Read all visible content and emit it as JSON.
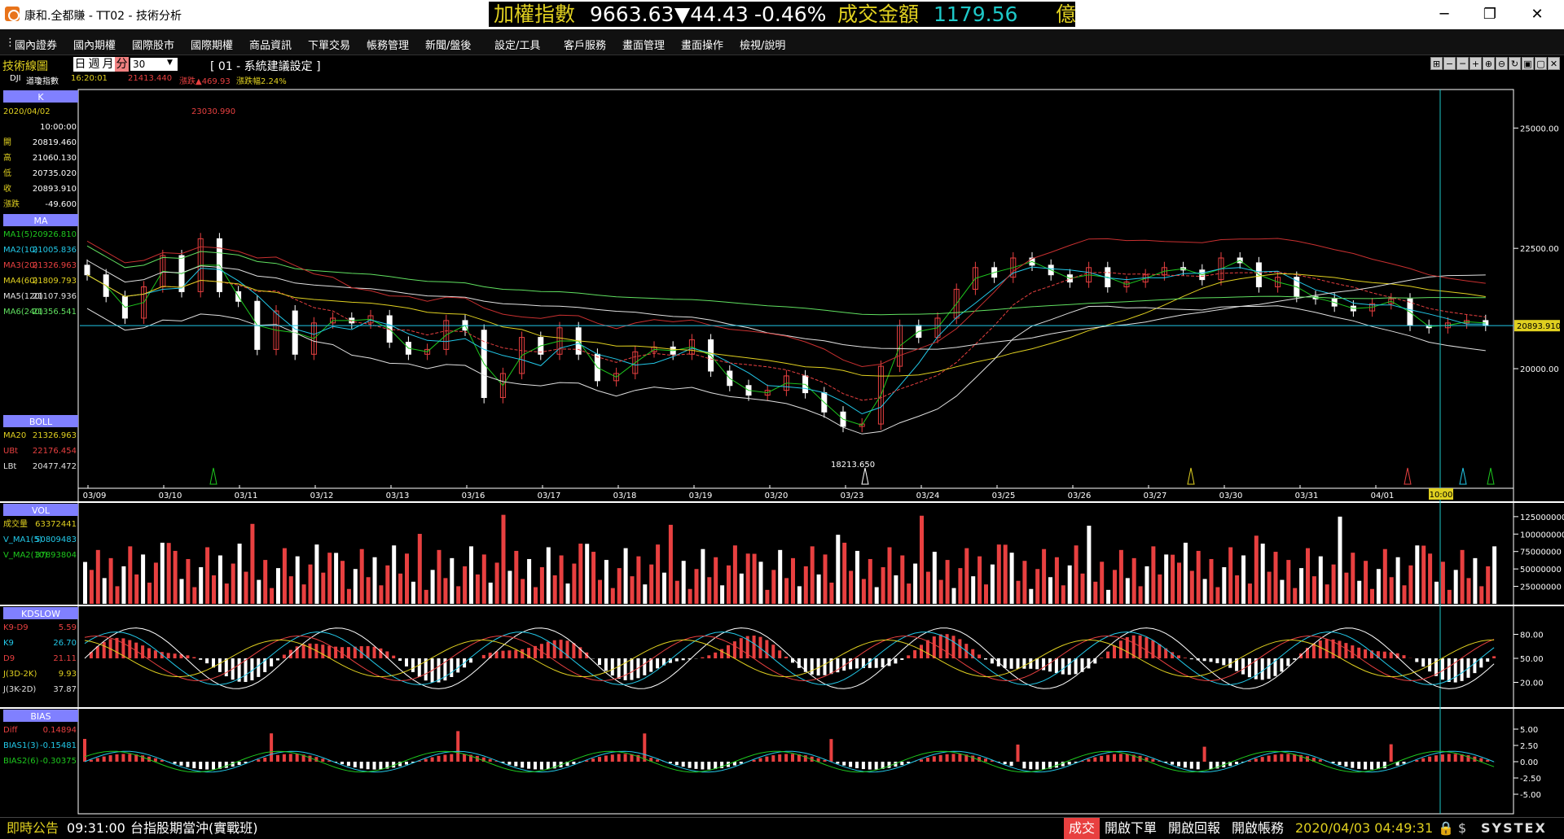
{
  "window": {
    "title": "康和.全都賺 - TT02 - 技術分析",
    "min": "─",
    "max": "❐",
    "close": "✕"
  },
  "ticker": {
    "label": "加權指數",
    "price": "9663.63",
    "change": "▼44.43",
    "pct": "-0.46%",
    "vol_label": "成交金額",
    "vol": "1179.56",
    "unit": "億"
  },
  "menu": [
    "國內證券",
    "國內期權",
    "國際股市",
    "國際期權",
    "商品資訊",
    "下單交易",
    "帳務管理",
    "新聞/盤後",
    "設定/工具",
    "客戶服務",
    "畫面管理",
    "畫面操作",
    "檢視/說明"
  ],
  "toolbar": {
    "panel_label": "技術線圖",
    "periods": [
      "日",
      "週",
      "月",
      "分"
    ],
    "active_period": "分",
    "interval": "30",
    "preset": "[ 01 - 系統建議設定 ]",
    "symbol": "DJI",
    "symbol_name": "道瓊指數",
    "time": "16:20:01",
    "last": "21413.440",
    "change": "漲跌▲469.93",
    "change_pct": "漲跌幅2.24%"
  },
  "info": {
    "k_title": "K",
    "date": "2020/04/02",
    "time": "10:00:00",
    "k_rows": [
      {
        "l": "開",
        "v": "20819.460"
      },
      {
        "l": "高",
        "v": "21060.130"
      },
      {
        "l": "低",
        "v": "20735.020"
      },
      {
        "l": "收",
        "v": "20893.910"
      },
      {
        "l": "漲跌",
        "v": "-49.600"
      }
    ],
    "ma_title": "MA",
    "ma_rows": [
      {
        "l": "MA1(5)",
        "v": "20926.810",
        "c": "#1ec81e"
      },
      {
        "l": "MA2(10)",
        "v": "21005.836",
        "c": "#22c8e8"
      },
      {
        "l": "MA3(20)",
        "v": "21326.963",
        "c": "#e84040"
      },
      {
        "l": "MA4(60)",
        "v": "21809.793",
        "c": "#e0d020"
      },
      {
        "l": "MA5(120)",
        "v": "21107.936",
        "c": "#e0e0e0"
      },
      {
        "l": "MA6(240)",
        "v": "21356.541",
        "c": "#60e060"
      }
    ],
    "boll_title": "BOLL",
    "boll_rows": [
      {
        "l": "MA20",
        "v": "21326.963",
        "c": "#e0d020"
      },
      {
        "l": "UBt",
        "v": "22176.454",
        "c": "#e84040"
      },
      {
        "l": "LBt",
        "v": "20477.472",
        "c": "#e0e0e0"
      }
    ],
    "vol_title": "VOL",
    "vol_rows": [
      {
        "l": "成交量",
        "v": "63372441",
        "c": "#e0d020"
      },
      {
        "l": "V_MA1(5)",
        "v": "50809483",
        "c": "#22c8e8"
      },
      {
        "l": "V_MA2(10)",
        "v": "37893804",
        "c": "#1ec81e"
      }
    ],
    "kd_title": "KDSLOW",
    "kd_rows": [
      {
        "l": "K9-D9",
        "v": "5.59",
        "c": "#e84040"
      },
      {
        "l": "K9",
        "v": "26.70",
        "c": "#22c8e8"
      },
      {
        "l": "D9",
        "v": "21.11",
        "c": "#e84040"
      },
      {
        "l": "J(3D-2K)",
        "v": "9.93",
        "c": "#e0d020"
      },
      {
        "l": "J(3K-2D)",
        "v": "37.87",
        "c": "#e0e0e0"
      }
    ],
    "bias_title": "BIAS",
    "bias_rows": [
      {
        "l": "Diff",
        "v": "0.14894",
        "c": "#e84040"
      },
      {
        "l": "BIAS1(3)",
        "v": "-0.15481",
        "c": "#22c8e8"
      },
      {
        "l": "BIAS2(6)",
        "v": "-0.30375",
        "c": "#1ec81e"
      }
    ]
  },
  "chart_data": [
    {
      "type": "candlestick",
      "name": "K",
      "x_ticks": [
        "03/09",
        "03/10",
        "03/11",
        "03/12",
        "03/13",
        "03/16",
        "03/17",
        "03/18",
        "03/19",
        "03/20",
        "03/23",
        "03/24",
        "03/25",
        "03/26",
        "03/27",
        "03/30",
        "03/31",
        "04/01"
      ],
      "cursor_label": "10:00",
      "y_ticks": [
        "25000.00",
        "22500.00",
        "20000.00"
      ],
      "ylim": [
        17600,
        25800
      ],
      "last_label": "20893.910",
      "high_label": "23030.990",
      "low_label": "18213.650",
      "close": [
        21950,
        21500,
        21050,
        21700,
        22350,
        21600,
        22700,
        21600,
        21400,
        20400,
        21200,
        20300,
        20950,
        21050,
        20950,
        21100,
        20550,
        20300,
        20400,
        21000,
        20800,
        19400,
        19900,
        20650,
        20300,
        20850,
        20300,
        19750,
        19900,
        20350,
        20450,
        20300,
        20600,
        19950,
        19650,
        19450,
        19550,
        19850,
        19500,
        19100,
        18800,
        18850,
        20050,
        20900,
        20650,
        21050,
        21650,
        22100,
        21900,
        22300,
        22150,
        21950,
        21800,
        22100,
        21700,
        21800,
        21950,
        22100,
        22050,
        21850,
        22300,
        22200,
        21700,
        21900,
        21500,
        21450,
        21300,
        21200,
        21350,
        21450,
        20900,
        20850,
        20950,
        21000,
        20900
      ],
      "highs_extra": [
        23030,
        null
      ],
      "lows_extra": [
        18213
      ]
    },
    {
      "type": "bar",
      "name": "VOL",
      "y_ticks": [
        "125000000",
        "100000000",
        "75000000",
        "50000000",
        "25000000"
      ],
      "ylim": [
        0,
        140000000
      ]
    },
    {
      "type": "line",
      "name": "KDSLOW",
      "y_ticks": [
        "80.00",
        "50.00",
        "20.00"
      ],
      "ylim": [
        -10,
        110
      ]
    },
    {
      "type": "bar",
      "name": "BIAS",
      "y_ticks": [
        "5.00",
        "2.50",
        "0.00",
        "-2.50",
        "-5.00"
      ],
      "ylim": [
        -7.5,
        7.5
      ]
    }
  ],
  "status": {
    "notice": "即時公告",
    "time": "09:31:00",
    "headline": "台指股期當沖(實戰班)",
    "trade": "成交",
    "b1": "開啟下單",
    "b2": "開啟回報",
    "b3": "開啟帳務",
    "clock": "2020/04/03 04:49:31",
    "brand": "SYSTEX"
  }
}
